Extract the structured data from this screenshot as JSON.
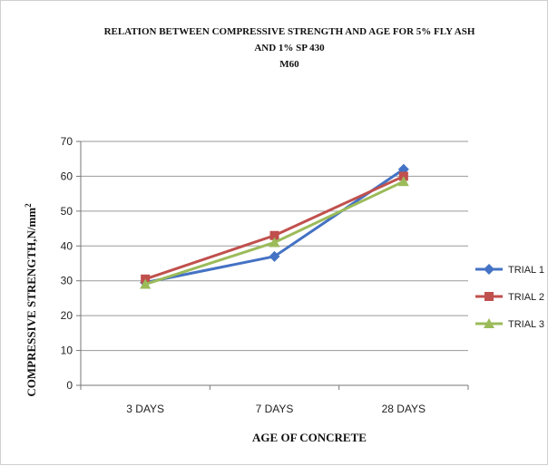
{
  "chart_data": {
    "type": "line",
    "title": [
      "RELATION BETWEEN COMPRESSIVE STRENGTH AND AGE FOR 5% FLY ASH",
      "AND 1% SP 430",
      "M60"
    ],
    "categories": [
      "3 DAYS",
      "7 DAYS",
      "28 DAYS"
    ],
    "xlabel": "AGE OF CONCRETE",
    "ylabel": "COMPRESSIVE STRENGTH,N/mm",
    "ylabel_sup": "2",
    "ylim": [
      0,
      70
    ],
    "yticks": [
      0,
      10,
      20,
      30,
      40,
      50,
      60,
      70
    ],
    "grid": true,
    "legend": "right",
    "series": [
      {
        "name": "TRIAL 1",
        "values": [
          29.5,
          37.0,
          62.0
        ],
        "color": "#4472C4",
        "marker": "diamond"
      },
      {
        "name": "TRIAL 2",
        "values": [
          30.5,
          43.0,
          60.0
        ],
        "color": "#C0504D",
        "marker": "square"
      },
      {
        "name": "TRIAL 3",
        "values": [
          29.0,
          41.0,
          58.5
        ],
        "color": "#9BBB59",
        "marker": "triangle"
      }
    ]
  }
}
